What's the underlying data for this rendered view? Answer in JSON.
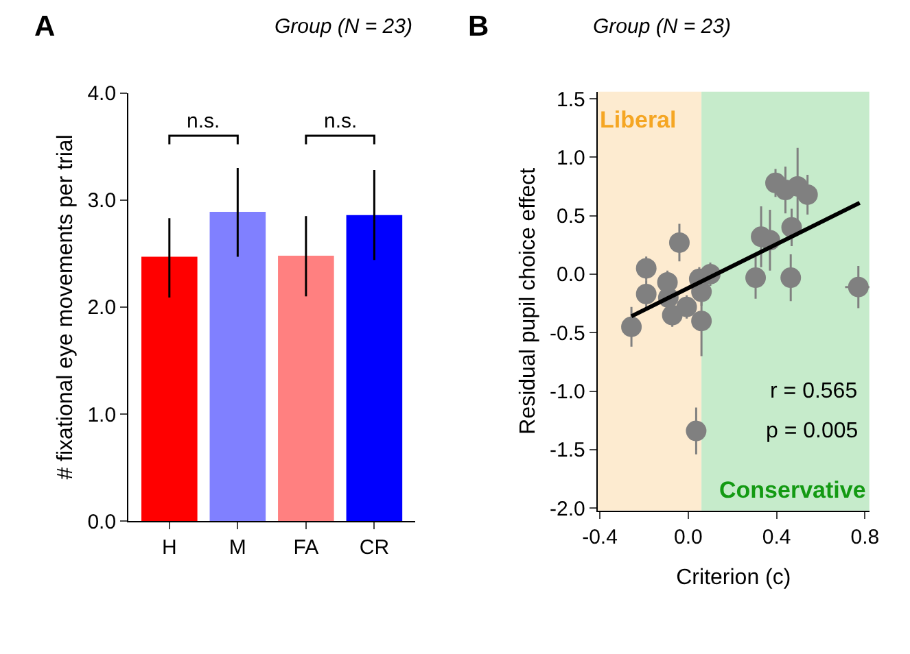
{
  "chart_data": [
    {
      "type": "bar",
      "title": "Group (N = 23)",
      "ylabel": "# fixational eye movements per trial",
      "categories": [
        "H",
        "M",
        "FA",
        "CR"
      ],
      "values": [
        2.47,
        2.89,
        2.48,
        2.86
      ],
      "colors": [
        "#ff0000",
        "#8080ff",
        "#ff8080",
        "#0000ff"
      ],
      "errors": [
        [
          2.09,
          2.83
        ],
        [
          2.47,
          3.3
        ],
        [
          2.1,
          2.85
        ],
        [
          2.44,
          3.28
        ]
      ],
      "ylim": [
        0,
        4.0
      ],
      "yticks": [
        {
          "value": 0,
          "label": "0.0"
        },
        {
          "value": 1,
          "label": "1.0"
        },
        {
          "value": 2,
          "label": "2.0"
        },
        {
          "value": 3,
          "label": "3.0"
        },
        {
          "value": 4,
          "label": "4.0"
        }
      ],
      "annotations": [
        "A",
        "n.s.",
        "n.s."
      ],
      "grid": false
    },
    {
      "type": "scatter",
      "title": "Group (N = 23)",
      "xlabel": "Criterion (c)",
      "ylabel": "Residual pupil choice effect",
      "xlim": [
        -0.41,
        0.82
      ],
      "ylim": [
        -2.02,
        1.56
      ],
      "xticks": [
        -0.4,
        {
          "value": 0,
          "label": "0.0"
        },
        0.4,
        0.8
      ],
      "yticks": [
        {
          "value": -2,
          "label": "-2.0"
        },
        -1.5,
        {
          "value": -1,
          "label": "-1.0"
        },
        -0.5,
        {
          "value": 0,
          "label": "0.0"
        },
        0.5,
        {
          "value": 1,
          "label": "1.0"
        },
        1.5
      ],
      "series": [
        {
          "type": "scatter",
          "color": "#808080",
          "marker": "circle",
          "x": [
            -0.257,
            -0.19,
            -0.19,
            -0.04,
            -0.094,
            -0.09,
            -0.072,
            -0.007,
            0.06,
            0.06,
            0.05,
            0.1,
            0.036,
            0.305,
            0.33,
            0.37,
            0.395,
            0.44,
            0.495,
            0.54,
            0.468,
            0.464,
            0.77
          ],
          "values": [
            -0.45,
            0.05,
            -0.17,
            0.27,
            -0.07,
            -0.2,
            -0.35,
            -0.28,
            -0.4,
            -0.15,
            -0.04,
            0.0,
            -1.34,
            -0.03,
            0.32,
            0.29,
            0.78,
            0.72,
            0.75,
            0.68,
            0.4,
            -0.03,
            -0.11
          ],
          "errors": [
            0.17,
            0.1,
            0.12,
            0.16,
            0.1,
            0.1,
            0.1,
            0.1,
            0.3,
            0.12,
            0.1,
            0.1,
            0.2,
            0.18,
            0.26,
            0.26,
            0.12,
            0.2,
            0.33,
            0.17,
            0.16,
            0.2,
            0.18
          ],
          "xerrors": [
            null,
            null,
            null,
            0.03,
            null,
            null,
            null,
            null,
            null,
            null,
            null,
            null,
            null,
            null,
            null,
            null,
            0.03,
            null,
            null,
            null,
            0.03,
            0.03,
            0.06
          ]
        },
        {
          "type": "line",
          "color": "#000000",
          "line_style": "solid",
          "x": [
            -0.257,
            0.776
          ],
          "values": [
            -0.36,
            0.61
          ]
        }
      ],
      "bands": [
        {
          "axis": "x",
          "from": -0.41,
          "to": 0.06,
          "label": "Liberal",
          "color": "#fdebd0"
        },
        {
          "axis": "x",
          "from": 0.06,
          "to": 0.82,
          "label": "Conservative",
          "color": "#c6ebcb"
        }
      ],
      "annotations": [
        "B",
        "r = 0.565",
        "p = 0.005"
      ],
      "grid": false
    }
  ]
}
